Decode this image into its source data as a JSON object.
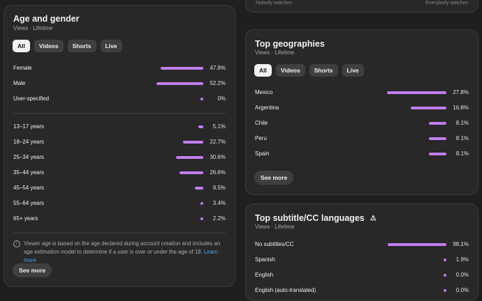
{
  "partial_card": {
    "left_text": "Nobody watches",
    "right_text": "Everybody watches"
  },
  "age_gender": {
    "title": "Age and gender",
    "subtitle": "Views · Lifetime",
    "chips": [
      "All",
      "Videos",
      "Shorts",
      "Live"
    ],
    "active_chip": "All",
    "gender_rows": [
      {
        "label": "Female",
        "value": "47.8%",
        "fraction": 0.478
      },
      {
        "label": "Male",
        "value": "52.2%",
        "fraction": 0.522
      },
      {
        "label": "User-specified",
        "value": "0%",
        "fraction": 0
      }
    ],
    "age_rows": [
      {
        "label": "13–17 years",
        "value": "5.1%",
        "fraction": 0.051
      },
      {
        "label": "18–24 years",
        "value": "22.7%",
        "fraction": 0.227
      },
      {
        "label": "25–34 years",
        "value": "30.6%",
        "fraction": 0.306
      },
      {
        "label": "35–44 years",
        "value": "26.6%",
        "fraction": 0.266
      },
      {
        "label": "45–54 years",
        "value": "9.5%",
        "fraction": 0.095
      },
      {
        "label": "55–64 years",
        "value": "3.4%",
        "fraction": 0.034
      },
      {
        "label": "65+ years",
        "value": "2.2%",
        "fraction": 0.022
      }
    ],
    "note_text": "Viewer age is based on the age declared during account creation and includes an age estimation model to determine if a user is over or under the age of 18.",
    "note_link": "Learn more",
    "see_more": "See more"
  },
  "geographies": {
    "title": "Top geographies",
    "subtitle": "Views · Lifetime",
    "chips": [
      "All",
      "Videos",
      "Shorts",
      "Live"
    ],
    "active_chip": "All",
    "rows": [
      {
        "label": "Mexico",
        "value": "27.8%",
        "fraction": 0.278
      },
      {
        "label": "Argentina",
        "value": "16.8%",
        "fraction": 0.168
      },
      {
        "label": "Chile",
        "value": "8.1%",
        "fraction": 0.081
      },
      {
        "label": "Peru",
        "value": "8.1%",
        "fraction": 0.081
      },
      {
        "label": "Spain",
        "value": "8.1%",
        "fraction": 0.081
      }
    ],
    "see_more": "See more"
  },
  "subtitles": {
    "title": "Top subtitle/CC languages",
    "subtitle": "Views · Lifetime",
    "rows": [
      {
        "label": "No subtitles/CC",
        "value": "98.1%",
        "fraction": 0.981
      },
      {
        "label": "Spanish",
        "value": "1.9%",
        "fraction": 0.019
      },
      {
        "label": "English",
        "value": "0.0%",
        "fraction": 0
      },
      {
        "label": "English (auto-translated)",
        "value": "0.0%",
        "fraction": 0
      }
    ]
  },
  "colors": {
    "bar": "#c27ef1",
    "card": "#282828",
    "background": "#1f1f1f",
    "link": "#3ea6ff"
  }
}
